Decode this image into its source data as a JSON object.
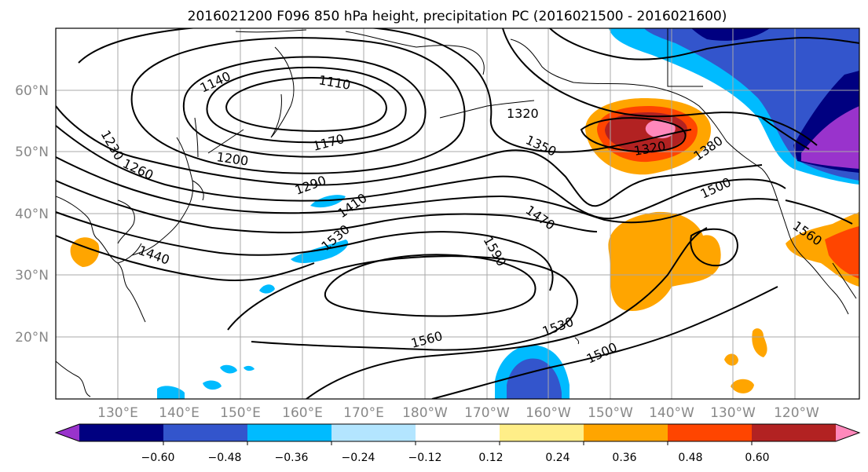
{
  "title": "2016021200 F096 850 hPa height, precipitation PC (2016021500 - 2016021600)",
  "lat_labels": [
    "60°N",
    "50°N",
    "40°N",
    "30°N",
    "20°N"
  ],
  "lon_labels": [
    "130°E",
    "140°E",
    "150°E",
    "160°E",
    "170°E",
    "180°W",
    "170°W",
    "160°W",
    "150°W",
    "140°W",
    "130°W",
    "120°W"
  ],
  "colorbar": {
    "colors": [
      "#9933cc",
      "#000080",
      "#3355cc",
      "#00bbff",
      "#b3e5ff",
      "#ffffff",
      "#ffee88",
      "#ffa500",
      "#ff4500",
      "#b22222",
      "#ff88bb"
    ],
    "ticks": [
      "−0.60",
      "−0.48",
      "−0.36",
      "−0.24",
      "−0.12",
      "0.12",
      "0.24",
      "0.36",
      "0.48",
      "0.60"
    ]
  },
  "contour_labels": [
    "1140",
    "1110",
    "1230",
    "1260",
    "1200",
    "1170",
    "1320",
    "1350",
    "1320",
    "1380",
    "1290",
    "1410",
    "1500",
    "1470",
    "1440",
    "1530",
    "1590",
    "1560",
    "1560",
    "1530",
    "1500"
  ]
}
